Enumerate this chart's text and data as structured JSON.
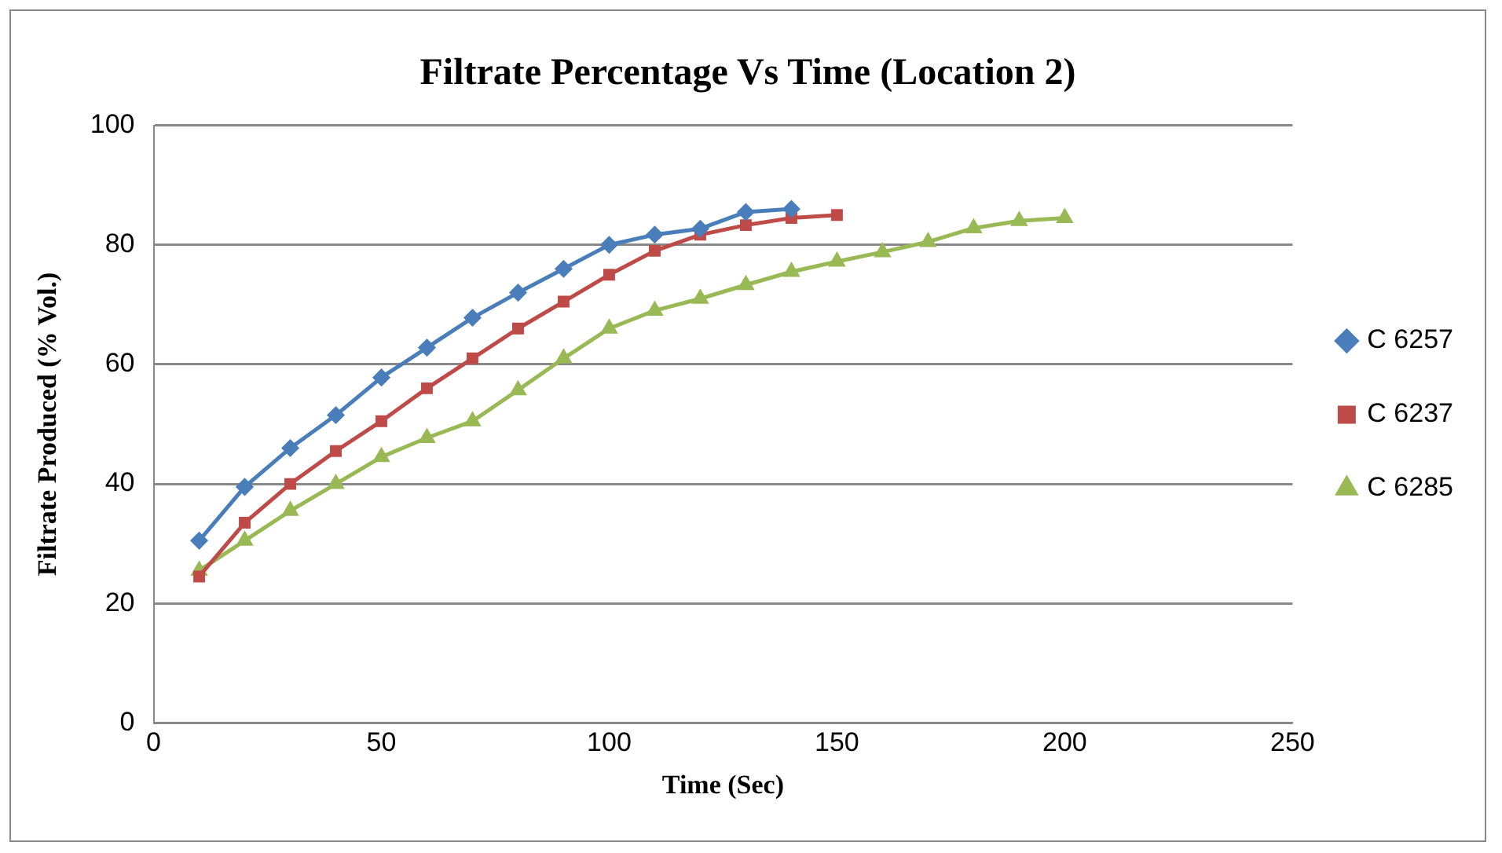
{
  "chart_data": {
    "type": "line",
    "title": "Filtrate Percentage Vs Time (Location 2)",
    "xlabel": "Time (Sec)",
    "ylabel": "Filtrate Produced (% Vol.)",
    "xlim": [
      0,
      250
    ],
    "xticks": [
      0,
      50,
      100,
      150,
      200,
      250
    ],
    "ylim": [
      0,
      100
    ],
    "yticks": [
      0,
      20,
      40,
      60,
      80,
      100
    ],
    "grid": "y",
    "legend": "right",
    "series": [
      {
        "name": "C 6257",
        "color": "#4a7ebb",
        "marker": "diamond",
        "x": [
          10,
          20,
          30,
          40,
          50,
          60,
          70,
          80,
          90,
          100,
          110,
          120,
          130,
          140
        ],
        "values": [
          30.5,
          39.5,
          46,
          51.5,
          57.8,
          62.8,
          67.8,
          72,
          76,
          80,
          81.7,
          82.7,
          85.5,
          86
        ]
      },
      {
        "name": "C 6237",
        "color": "#be4b48",
        "marker": "square",
        "x": [
          10,
          20,
          30,
          40,
          50,
          60,
          70,
          80,
          90,
          100,
          110,
          120,
          130,
          140,
          150
        ],
        "values": [
          24.5,
          33.5,
          40,
          45.5,
          50.5,
          56,
          61,
          66,
          70.5,
          75,
          79,
          81.7,
          83.3,
          84.5,
          85
        ]
      },
      {
        "name": "C 6285",
        "color": "#98b954",
        "marker": "triangle",
        "x": [
          10,
          20,
          30,
          40,
          50,
          60,
          70,
          80,
          90,
          100,
          110,
          120,
          130,
          140,
          150,
          160,
          170,
          180,
          190,
          200
        ],
        "values": [
          25.5,
          30.5,
          35.5,
          40,
          44.5,
          47.7,
          50.5,
          55.7,
          61,
          66,
          69,
          71,
          73.3,
          75.5,
          77.2,
          78.8,
          80.5,
          82.8,
          84,
          84.5
        ]
      }
    ]
  }
}
